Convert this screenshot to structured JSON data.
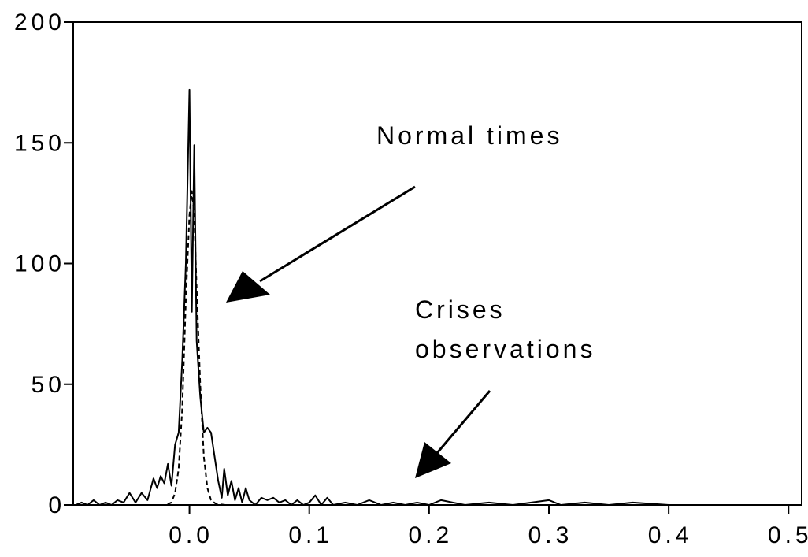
{
  "chart_data": {
    "type": "line",
    "xlim": [
      -0.097,
      0.511
    ],
    "ylim": [
      0,
      200
    ],
    "xticks": [
      {
        "value": 0,
        "label": "0.0"
      },
      0.1,
      0.2,
      0.3,
      0.4,
      0.5
    ],
    "yticks": [
      0,
      50,
      100,
      150,
      200
    ],
    "annotations": [
      "Normal times",
      "Crises",
      "observations"
    ],
    "series": [
      {
        "color": "#000000",
        "line_style": "solid",
        "x": [
          -0.095,
          -0.09,
          -0.085,
          -0.08,
          -0.075,
          -0.07,
          -0.065,
          -0.06,
          -0.055,
          -0.05,
          -0.045,
          -0.04,
          -0.035,
          -0.03,
          -0.027,
          -0.024,
          -0.021,
          -0.018,
          -0.015,
          -0.012,
          -0.009,
          -0.006,
          -0.003,
          0.0,
          0.002,
          0.004,
          0.006,
          0.009,
          0.012,
          0.015,
          0.018,
          0.021,
          0.024,
          0.027,
          0.029,
          0.032,
          0.035,
          0.038,
          0.041,
          0.044,
          0.047,
          0.05,
          0.055,
          0.06,
          0.065,
          0.07,
          0.075,
          0.08,
          0.085,
          0.09,
          0.095,
          0.1,
          0.105,
          0.11,
          0.115,
          0.12,
          0.13,
          0.14,
          0.15,
          0.16,
          0.17,
          0.18,
          0.19,
          0.2,
          0.21,
          0.22,
          0.23,
          0.25,
          0.27,
          0.3,
          0.31,
          0.33,
          0.35,
          0.37,
          0.4,
          0.45,
          0.5,
          0.511
        ],
        "values": [
          0,
          1,
          0,
          2,
          0,
          1,
          0,
          2,
          1,
          5,
          1,
          5,
          2,
          11,
          7,
          12,
          9,
          17,
          8,
          25,
          30,
          60,
          100,
          172,
          80,
          149,
          68,
          45,
          30,
          32,
          30,
          20,
          10,
          3,
          15,
          4,
          10,
          2,
          7,
          1,
          7,
          2,
          0,
          3,
          2,
          3,
          1,
          2,
          0,
          2,
          0,
          1,
          4,
          0,
          3,
          0,
          1,
          0,
          2,
          0,
          1,
          0,
          1,
          0,
          2,
          1,
          0,
          1,
          0,
          2,
          0,
          1,
          0,
          1,
          0,
          0,
          0,
          0
        ]
      },
      {
        "color": "#000000",
        "line_style": "dashed",
        "x": [
          -0.097,
          -0.02,
          -0.015,
          -0.012,
          -0.009,
          -0.006,
          -0.003,
          0.0,
          0.002,
          0.004,
          0.006,
          0.009,
          0.012,
          0.015,
          0.018,
          0.022,
          0.03,
          0.511
        ],
        "values": [
          0,
          0,
          1,
          5,
          15,
          40,
          85,
          120,
          130,
          120,
          90,
          50,
          20,
          7,
          2,
          0.5,
          0,
          0
        ]
      }
    ]
  }
}
